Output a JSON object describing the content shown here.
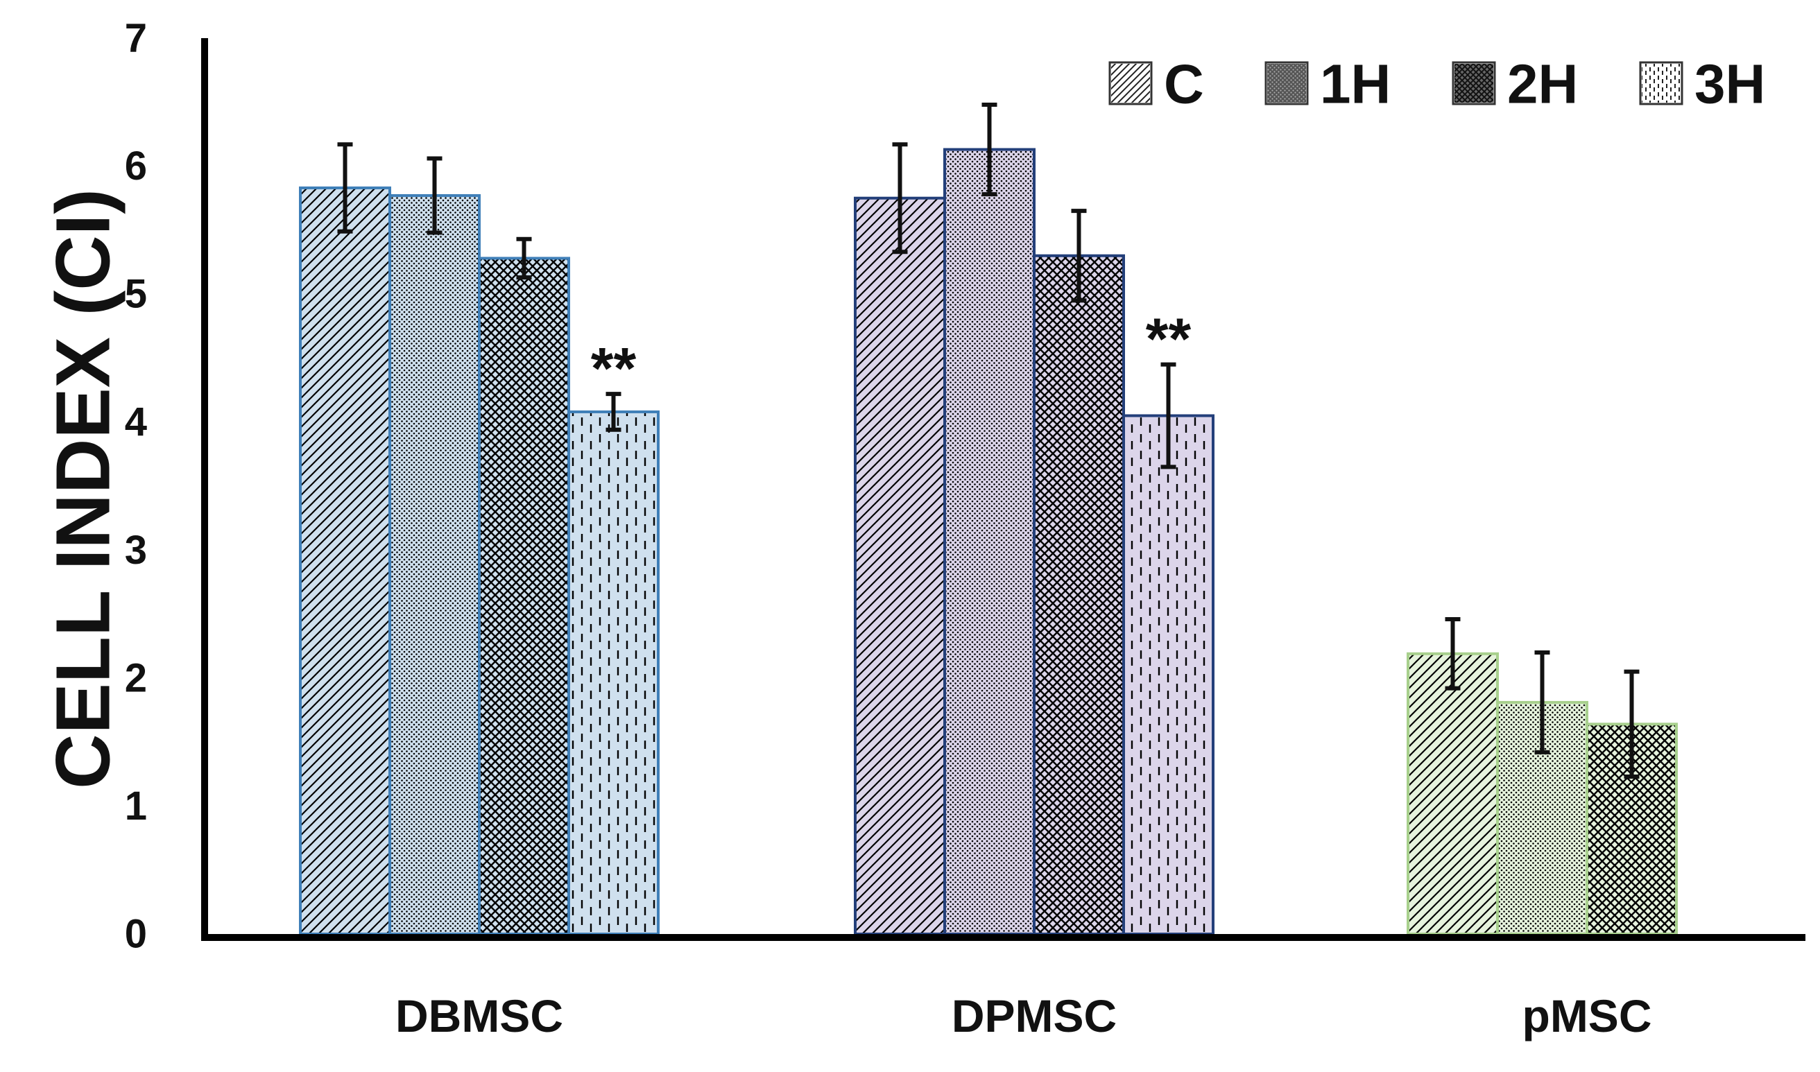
{
  "chart_data": {
    "type": "bar",
    "title": "",
    "xlabel": "",
    "ylabel": "CELL INDEX (CI)",
    "ylim": [
      0,
      7
    ],
    "yticks": [
      0,
      1,
      2,
      3,
      4,
      5,
      6,
      7
    ],
    "grid": false,
    "legend_position": "top-right",
    "categories": [
      "DBMSC",
      "DPMSC",
      "pMSC"
    ],
    "series": [
      {
        "name": "C",
        "values": [
          5.83,
          5.75,
          2.19
        ],
        "errors": [
          0.34,
          0.42,
          0.27
        ]
      },
      {
        "name": "1H",
        "values": [
          5.77,
          6.13,
          1.81
        ],
        "errors": [
          0.29,
          0.35,
          0.39
        ]
      },
      {
        "name": "2H",
        "values": [
          5.28,
          5.3,
          1.64
        ],
        "errors": [
          0.15,
          0.35,
          0.41
        ]
      },
      {
        "name": "3H",
        "values": [
          4.08,
          4.05,
          null
        ],
        "errors": [
          0.14,
          0.4,
          null
        ]
      }
    ],
    "annotations": [
      {
        "category": "DBMSC",
        "series": "3H",
        "text": "**"
      },
      {
        "category": "DPMSC",
        "series": "3H",
        "text": "**"
      }
    ],
    "colors": {
      "DBMSC": {
        "fill": "#cfe0ee",
        "stroke": "#3f7fb8",
        "hatch": "#3f7fb8"
      },
      "DPMSC": {
        "fill": "#dcd5ea",
        "stroke": "#233f7a",
        "hatch": "#233f7a"
      },
      "pMSC": {
        "fill": "#e6f3dd",
        "stroke": "#a8d08d",
        "hatch": "#a8d08d"
      },
      "axis": "#000000",
      "error_bar": "#111111",
      "legend_stroke": "#333333",
      "legend_fill": "#ffffff"
    }
  }
}
